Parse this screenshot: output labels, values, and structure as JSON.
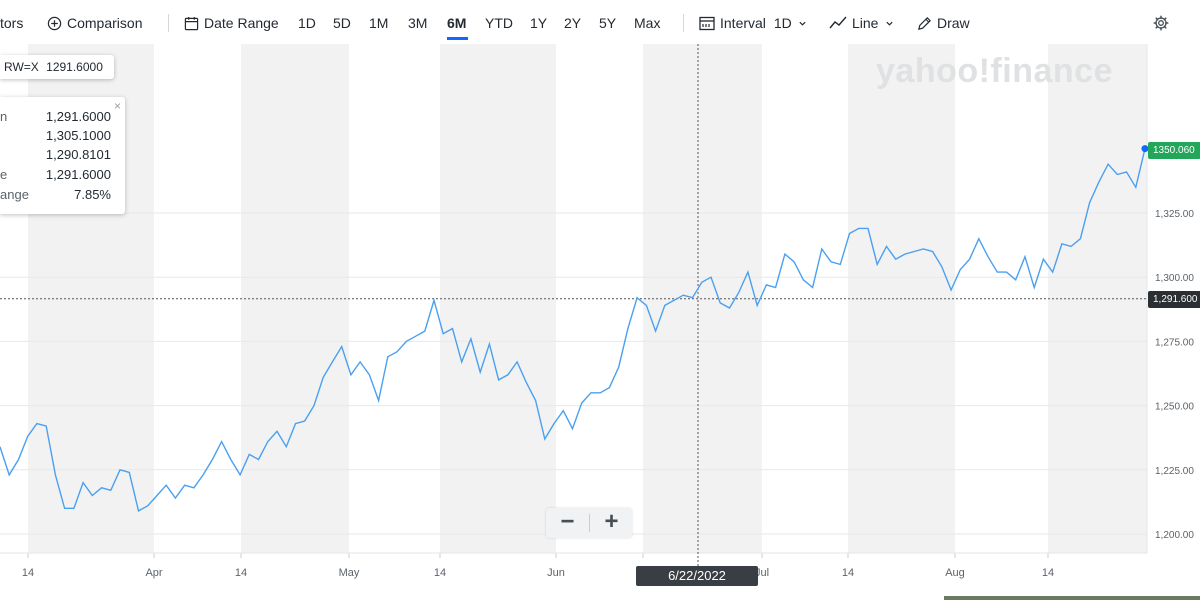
{
  "toolbar": {
    "indicators_label": "tors",
    "comparison_label": "Comparison",
    "date_range_label": "Date Range",
    "ranges": [
      "1D",
      "5D",
      "1M",
      "3M",
      "6M",
      "YTD",
      "1Y",
      "2Y",
      "5Y",
      "Max"
    ],
    "active_range": "6M",
    "interval_label": "Interval",
    "interval_value": "1D",
    "chart_type_label": "Line",
    "draw_label": "Draw"
  },
  "tooltip": {
    "symbol": "RW=X",
    "price": "1291.6000",
    "rows": [
      {
        "label": "n",
        "value": "1,291.6000"
      },
      {
        "label": "",
        "value": "1,305.1000"
      },
      {
        "label": "",
        "value": "1,290.8101"
      },
      {
        "label": "e",
        "value": "1,291.6000"
      },
      {
        "label": "ange",
        "value": "7.85%"
      }
    ],
    "close_symbol": "×"
  },
  "crosshair": {
    "date_label": "6/22/2022",
    "price_label": "1,291.600"
  },
  "last_price_label": "1350.060",
  "zoom": {
    "minus": "−",
    "plus": "+"
  },
  "watermark": "yahoo!finance",
  "colors": {
    "line": "#4aa0f0",
    "last_price_bg": "#21a65a",
    "crosshair_price_bg": "#2b2f33",
    "accent": "#0f69ff",
    "band": "#f2f2f2"
  },
  "chart_data": {
    "type": "line",
    "ylim": [
      1195,
      1352
    ],
    "y_ticks": [
      {
        "value": 1200,
        "label": "1,200.00"
      },
      {
        "value": 1225,
        "label": "1,225.00"
      },
      {
        "value": 1250,
        "label": "1,250.00"
      },
      {
        "value": 1275,
        "label": "1,275.00"
      },
      {
        "value": 1300,
        "label": "1,300.00"
      },
      {
        "value": 1325,
        "label": "1,325.00"
      }
    ],
    "x_ticks": [
      "14",
      "Apr",
      "14",
      "May",
      "14",
      "Jun",
      "14",
      "Jul",
      "14",
      "Aug",
      "14"
    ],
    "series": [
      {
        "values": [
          1234,
          1223,
          1229,
          1238,
          1243,
          1242,
          1223,
          1210,
          1210,
          1220,
          1215,
          1218,
          1217,
          1225,
          1224,
          1209,
          1211,
          1215,
          1219,
          1214,
          1219,
          1218,
          1223,
          1229,
          1236,
          1229,
          1223,
          1231,
          1229,
          1236,
          1240,
          1234,
          1243,
          1244,
          1250,
          1261,
          1267,
          1273,
          1262,
          1267,
          1262,
          1252,
          1269,
          1271,
          1275,
          1277,
          1279,
          1291,
          1278,
          1280,
          1267,
          1276,
          1263,
          1274,
          1260,
          1262,
          1267,
          1259,
          1252,
          1237,
          1243,
          1248,
          1241,
          1251,
          1255,
          1255,
          1257,
          1265,
          1280,
          1292,
          1289,
          1279,
          1289,
          1291,
          1293,
          1292,
          1298,
          1300,
          1290,
          1288,
          1294,
          1302,
          1289,
          1297,
          1296,
          1309,
          1306,
          1299,
          1296,
          1311,
          1306,
          1305,
          1317,
          1319,
          1319,
          1305,
          1312,
          1307,
          1309,
          1310,
          1311,
          1310,
          1304,
          1295,
          1303,
          1307,
          1315,
          1308,
          1302,
          1302,
          1299,
          1308,
          1296,
          1307,
          1302,
          1313,
          1312,
          1315,
          1329,
          1337,
          1344,
          1340,
          1341,
          1335,
          1350.06
        ]
      }
    ],
    "crosshair_value": 1291.6,
    "last_value": 1350.06
  }
}
